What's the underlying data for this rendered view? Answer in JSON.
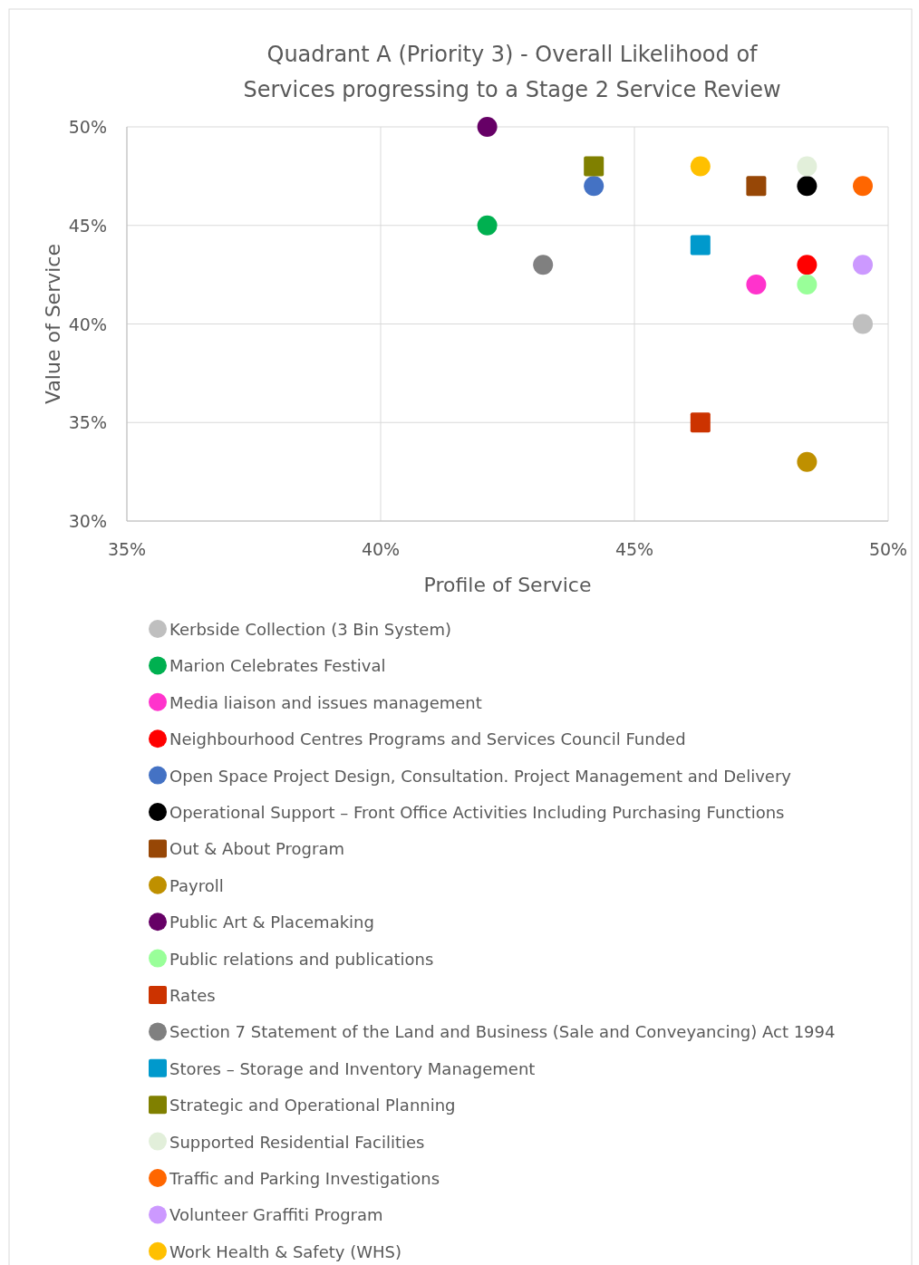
{
  "chart_data": {
    "type": "scatter",
    "title": "Quadrant A (Priority 3) - Overall Likelihood of Services progressing to a Stage 2 Service Review",
    "xlabel": "Profile of Service",
    "ylabel": "Value of Service",
    "xlim": [
      35,
      50
    ],
    "ylim": [
      30,
      50
    ],
    "xticks": [
      {
        "value": 35,
        "label": "35%"
      },
      {
        "value": 40,
        "label": "40%"
      },
      {
        "value": 45,
        "label": "45%"
      },
      {
        "value": 50,
        "label": "50%"
      }
    ],
    "yticks": [
      {
        "value": 30,
        "label": "30%"
      },
      {
        "value": 35,
        "label": "35%"
      },
      {
        "value": 40,
        "label": "40%"
      },
      {
        "value": 45,
        "label": "45%"
      },
      {
        "value": 50,
        "label": "50%"
      }
    ],
    "grid": true,
    "legend": "bottom",
    "series": [
      {
        "name": "Kerbside Collection (3 Bin System)",
        "color": "#bfbfbf",
        "marker": "circle",
        "x": [
          49.5
        ],
        "values": [
          40
        ]
      },
      {
        "name": "Marion Celebrates Festival",
        "color": "#00b050",
        "marker": "circle",
        "x": [
          42.1
        ],
        "values": [
          45
        ]
      },
      {
        "name": "Media liaison and issues management",
        "color": "#ff33cc",
        "marker": "circle",
        "x": [
          47.4
        ],
        "values": [
          42
        ]
      },
      {
        "name": "Neighbourhood Centres Programs and Services Council Funded",
        "color": "#ff0000",
        "marker": "circle",
        "x": [
          48.4
        ],
        "values": [
          43
        ]
      },
      {
        "name": "Open Space Project Design, Consultation. Project Management and Delivery",
        "color": "#4472c4",
        "marker": "circle",
        "x": [
          44.2
        ],
        "values": [
          47
        ]
      },
      {
        "name": "Operational Support – Front Office Activities Including Purchasing Functions",
        "color": "#000000",
        "marker": "circle",
        "x": [
          48.4
        ],
        "values": [
          47
        ]
      },
      {
        "name": "Out & About Program",
        "color": "#974706",
        "marker": "square",
        "x": [
          47.4
        ],
        "values": [
          47
        ]
      },
      {
        "name": "Payroll",
        "color": "#bf9000",
        "marker": "circle",
        "x": [
          48.4
        ],
        "values": [
          33
        ]
      },
      {
        "name": "Public Art & Placemaking",
        "color": "#660066",
        "marker": "circle",
        "x": [
          42.1
        ],
        "values": [
          50
        ]
      },
      {
        "name": "Public relations and publications",
        "color": "#99ff99",
        "marker": "circle",
        "x": [
          48.4
        ],
        "values": [
          42
        ]
      },
      {
        "name": "Rates",
        "color": "#cc3300",
        "marker": "square",
        "x": [
          46.3
        ],
        "values": [
          35
        ]
      },
      {
        "name": "Section 7 Statement of the Land and Business (Sale and Conveyancing) Act 1994",
        "color": "#808080",
        "marker": "circle",
        "x": [
          43.2
        ],
        "values": [
          43
        ]
      },
      {
        "name": "Stores – Storage and Inventory Management",
        "color": "#0099cc",
        "marker": "square",
        "x": [
          46.3
        ],
        "values": [
          44
        ]
      },
      {
        "name": "Strategic and Operational Planning",
        "color": "#808000",
        "marker": "square",
        "x": [
          44.2
        ],
        "values": [
          48
        ]
      },
      {
        "name": "Supported Residential Facilities",
        "color": "#e2efda",
        "marker": "circle",
        "x": [
          48.4
        ],
        "values": [
          48
        ]
      },
      {
        "name": "Traffic and Parking Investigations",
        "color": "#ff6600",
        "marker": "circle",
        "x": [
          49.5
        ],
        "values": [
          47
        ]
      },
      {
        "name": "Volunteer Graffiti Program",
        "color": "#cc99ff",
        "marker": "circle",
        "x": [
          49.5
        ],
        "values": [
          43
        ]
      },
      {
        "name": "Work Health & Safety (WHS)",
        "color": "#ffc000",
        "marker": "circle",
        "x": [
          46.3
        ],
        "values": [
          48
        ]
      }
    ]
  }
}
